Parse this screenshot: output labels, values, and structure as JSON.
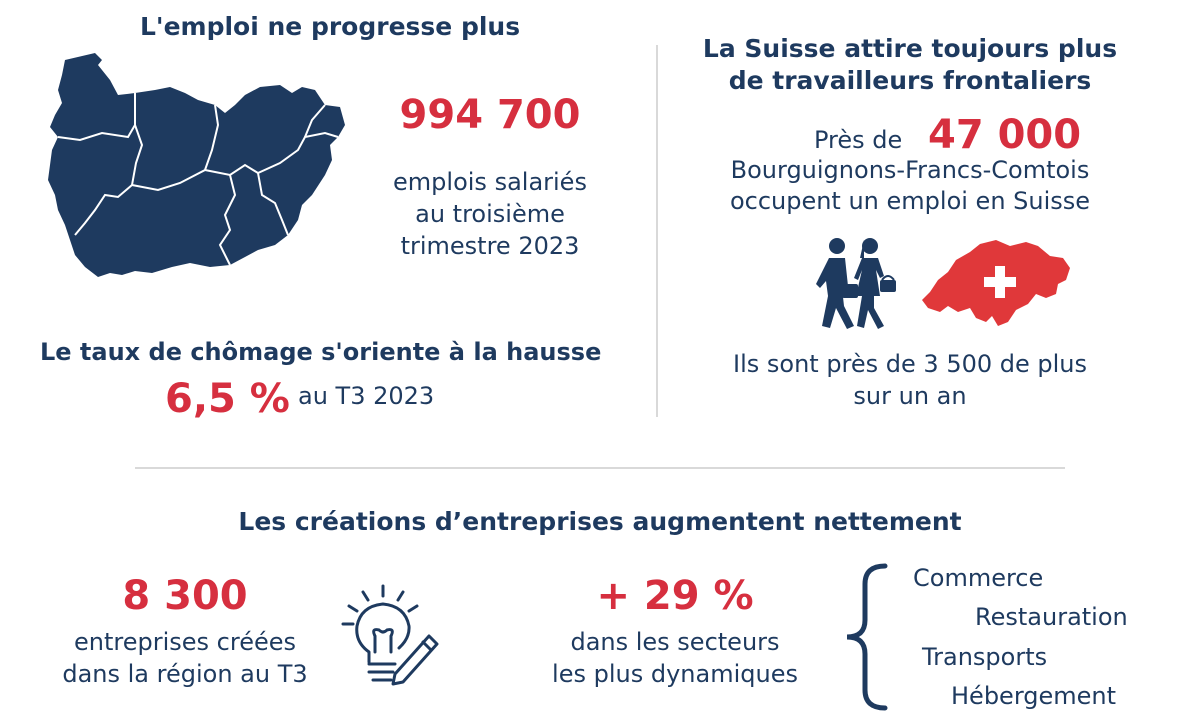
{
  "emploi": {
    "title": "L'emploi ne progresse plus",
    "value": "994 700",
    "line1": "emplois salariés",
    "line2": "au troisième",
    "line3": "trimestre 2023"
  },
  "chomage": {
    "title": "Le taux de chômage s'oriente à la hausse",
    "value": "6,5 %",
    "period": "au T3 2023"
  },
  "suisse": {
    "title_line1": "La Suisse attire toujours plus",
    "title_line2": "de travailleurs frontaliers",
    "pres_de": "Près de",
    "value": "47 000",
    "line1": "Bourguignons-Francs-Comtois",
    "line2": "occupent un emploi en Suisse",
    "more_line1": "Ils sont près de 3 500 de plus",
    "more_line2": "sur un an"
  },
  "creations": {
    "title": "Les créations d’entreprises augmentent nettement",
    "count": "8 300",
    "count_line1": "entreprises créées",
    "count_line2": "dans la région au T3",
    "growth": "+ 29 %",
    "growth_line1": "dans les secteurs",
    "growth_line2": "les plus dynamiques",
    "sectors": [
      "Commerce",
      "Restauration",
      "Transports",
      "Hébergement"
    ]
  },
  "colors": {
    "navy": "#1e3a5f",
    "red": "#d62f3f",
    "swiss_red": "#e0383a",
    "divider": "#d9d9d9"
  },
  "icons": [
    "region-map-icon",
    "commuters-icon",
    "switzerland-map-icon",
    "lightbulb-pencil-icon"
  ]
}
